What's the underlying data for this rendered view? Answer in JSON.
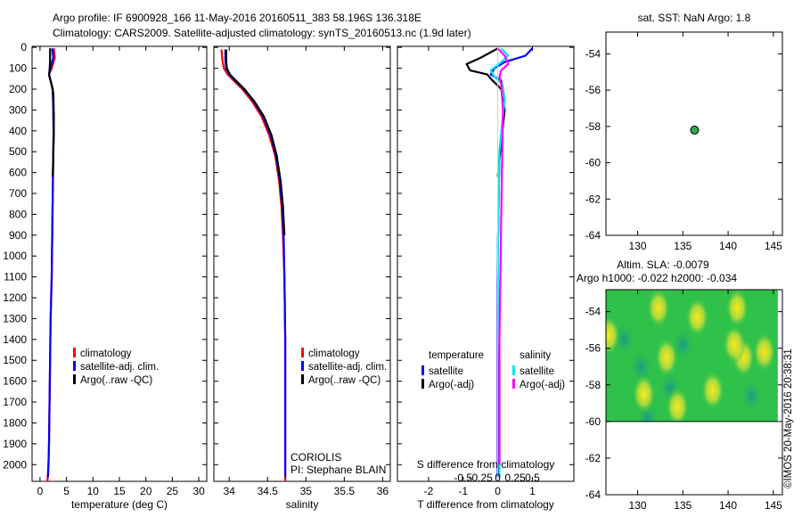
{
  "header": {
    "line1": "Argo profile: IF 6900928_166 11-May-2016 20160511_383 58.196S 136.318E",
    "line2": "Climatology: CARS2009. Satellite-adjusted climatology: synTS_20160513.nc (1.9d later)"
  },
  "colors": {
    "climatology": "#ff0000",
    "satellite": "#0000ff",
    "argo": "#000000",
    "sat_diff": "#00e5e5",
    "argo_diff": "#ff00ff",
    "marker": "#2fa84f"
  },
  "chart_data": [
    {
      "type": "line",
      "name": "temperature",
      "xlabel": "temperature (deg C)",
      "xlim": [
        -1.5,
        31.5
      ],
      "ylim": [
        2080,
        -5
      ],
      "xticks": [
        0,
        5,
        10,
        15,
        20,
        25,
        30
      ],
      "xtick_labels": [
        "0",
        "5",
        "10",
        "15",
        "20",
        "25",
        "30"
      ],
      "yticks": [
        0,
        100,
        200,
        300,
        400,
        500,
        600,
        700,
        800,
        900,
        1000,
        1100,
        1200,
        1300,
        1400,
        1500,
        1600,
        1700,
        1800,
        1900,
        2000
      ],
      "ytick_labels": [
        "0",
        "100",
        "200",
        "300",
        "400",
        "500",
        "600",
        "700",
        "800",
        "900",
        "1000",
        "1100",
        "1200",
        "1300",
        "1400",
        "1500",
        "1600",
        "1700",
        "1800",
        "1900",
        "2000"
      ],
      "legend": [
        "climatology",
        "satellite-adj. clim.",
        "Argo(..raw -QC)"
      ],
      "series": [
        {
          "name": "climatology",
          "color": "#ff0000",
          "x": [
            2.6,
            2.8,
            2.2,
            1.7,
            2.0,
            2.4,
            2.5,
            2.55,
            2.5,
            2.4,
            2.3,
            2.2,
            2.0,
            1.9,
            1.8,
            1.7,
            1.6,
            1.4
          ],
          "y": [
            5,
            50,
            100,
            130,
            160,
            200,
            300,
            400,
            500,
            700,
            900,
            1100,
            1300,
            1500,
            1700,
            1900,
            2000,
            2080
          ]
        },
        {
          "name": "satellite-adj. clim.",
          "color": "#0000ff",
          "x": [
            2.3,
            2.5,
            2.0,
            1.7,
            2.0,
            2.4,
            2.5,
            2.55,
            2.5,
            2.4,
            2.3,
            2.2,
            2.0,
            1.9,
            1.8,
            1.7,
            1.6,
            1.5
          ],
          "y": [
            5,
            50,
            100,
            130,
            160,
            200,
            300,
            400,
            500,
            700,
            900,
            1100,
            1300,
            1500,
            1700,
            1900,
            2000,
            2060
          ]
        },
        {
          "name": "Argo(..raw -QC)",
          "color": "#000000",
          "x": [
            1.9,
            1.9,
            1.8,
            1.7,
            2.1,
            2.5,
            2.6,
            2.6,
            2.5,
            2.4
          ],
          "y": [
            5,
            70,
            110,
            130,
            170,
            220,
            320,
            420,
            520,
            620
          ]
        }
      ]
    },
    {
      "type": "line",
      "name": "salinity",
      "xlabel": "salinity",
      "xlim": [
        33.8,
        36.1
      ],
      "ylim": [
        2080,
        -5
      ],
      "xticks": [
        34,
        34.5,
        35,
        35.5,
        36
      ],
      "xtick_labels": [
        "34",
        "34.5",
        "35",
        "35.5",
        "36"
      ],
      "legend": [
        "climatology",
        "satellite-adj. clim.",
        "Argo(..raw -QC)"
      ],
      "annotation": [
        "CORIOLIS",
        "PI: Stephane BLAIN"
      ],
      "series": [
        {
          "name": "climatology",
          "color": "#ff0000",
          "x": [
            33.9,
            33.91,
            33.93,
            33.98,
            34.06,
            34.17,
            34.3,
            34.42,
            34.52,
            34.6,
            34.65,
            34.68,
            34.7,
            34.72,
            34.73,
            34.73,
            34.73
          ],
          "y": [
            10,
            60,
            100,
            130,
            160,
            200,
            260,
            330,
            420,
            520,
            640,
            760,
            900,
            1100,
            1400,
            1800,
            2080
          ]
        },
        {
          "name": "satellite-adj. clim.",
          "color": "#0000ff",
          "x": [
            33.95,
            33.95,
            33.96,
            34.0,
            34.08,
            34.19,
            34.32,
            34.44,
            34.54,
            34.61,
            34.66,
            34.69,
            34.71,
            34.72,
            34.73,
            34.73,
            34.73
          ],
          "y": [
            10,
            60,
            100,
            130,
            160,
            200,
            260,
            330,
            420,
            520,
            640,
            760,
            900,
            1100,
            1400,
            1800,
            2060
          ]
        },
        {
          "name": "Argo(..raw -QC)",
          "color": "#000000",
          "x": [
            33.96,
            33.96,
            33.97,
            34.01,
            34.09,
            34.2,
            34.33,
            34.45,
            34.55,
            34.62,
            34.67,
            34.7,
            34.72
          ],
          "y": [
            10,
            60,
            100,
            130,
            160,
            200,
            260,
            330,
            420,
            520,
            640,
            760,
            900
          ]
        }
      ]
    },
    {
      "type": "line",
      "name": "difference from climatology",
      "xlabel": "T difference from climatology",
      "xlabel_top": "S difference from climatology",
      "xlim": [
        -2.9,
        2.2
      ],
      "ylim": [
        2080,
        -5
      ],
      "xticks": [
        -2,
        -1,
        0,
        1
      ],
      "xtick_labels": [
        "-2",
        "-1",
        "0",
        "1"
      ],
      "top_ticks": [
        -0.5,
        -0.25,
        0,
        0.25,
        0.5
      ],
      "top_tick_labels": [
        "-0.5",
        "-0.25",
        "0",
        "0.25",
        "0.5"
      ],
      "legend_titles": [
        "temperature",
        "salinity"
      ],
      "legend": [
        "satellite",
        "Argo(-adj)",
        "satellite",
        "Argo(-adj)"
      ],
      "series": [
        {
          "name": "temperature satellite",
          "color": "#0000ff",
          "x": [
            1.0,
            0.8,
            0.2,
            -0.1,
            -0.2,
            0.1,
            0.2,
            0.05,
            0.0,
            0.0,
            0.0
          ],
          "y": [
            5,
            40,
            70,
            100,
            130,
            160,
            250,
            500,
            1000,
            1500,
            2060
          ]
        },
        {
          "name": "temperature Argo(-adj)",
          "color": "#000000",
          "x": [
            0.0,
            -0.5,
            -0.9,
            -0.8,
            -0.3,
            -0.2,
            0.1,
            0.2,
            0.1,
            0.0
          ],
          "y": [
            5,
            50,
            80,
            110,
            130,
            150,
            200,
            300,
            450,
            620
          ]
        },
        {
          "name": "salinity satellite",
          "color": "#00e5e5",
          "x": [
            0.1,
            0.3,
            0.1,
            -0.2,
            -0.1,
            0.1,
            0.2,
            0.05,
            0.0,
            0.05,
            0.05
          ],
          "y": [
            5,
            40,
            70,
            110,
            140,
            170,
            250,
            500,
            1000,
            1500,
            2060
          ]
        },
        {
          "name": "salinity Argo(-adj)",
          "color": "#ff00ff",
          "x": [
            0.0,
            0.2,
            0.3,
            0.1,
            0.05,
            0.1,
            0.15,
            0.1,
            0.05,
            0.05
          ],
          "y": [
            5,
            40,
            80,
            110,
            140,
            180,
            300,
            800,
            1400,
            2000
          ]
        }
      ]
    },
    {
      "type": "scatter",
      "name": "location",
      "title": "sat. SST: NaN Argo: 1.8",
      "xlim": [
        126.5,
        146
      ],
      "ylim": [
        -64,
        -52.8
      ],
      "xticks": [
        130,
        135,
        140,
        145
      ],
      "xtick_labels": [
        "130",
        "135",
        "140",
        "145"
      ],
      "yticks": [
        -54,
        -56,
        -58,
        -60,
        -62,
        -64
      ],
      "ytick_labels": [
        "-54",
        "-56",
        "-58",
        "-60",
        "-62",
        "-64"
      ],
      "points": [
        {
          "x": 136.3,
          "y": -58.2
        }
      ]
    },
    {
      "type": "heatmap",
      "name": "altimetry",
      "title1": "Altim. SLA: -0.0079",
      "title2": "Argo h1000: -0.022 h2000: -0.034",
      "xlim": [
        126.5,
        146
      ],
      "ylim": [
        -64,
        -52.8
      ],
      "field_ylim": [
        -60,
        -52.8
      ],
      "field_xlim": [
        126.5,
        145.5
      ],
      "xticks": [
        130,
        135,
        140,
        145
      ],
      "xtick_labels": [
        "130",
        "135",
        "140",
        "145"
      ],
      "yticks": [
        -54,
        -56,
        -58,
        -60,
        -62,
        -64
      ],
      "ytick_labels": [
        "-54",
        "-56",
        "-58",
        "-60",
        "-62",
        "-64"
      ],
      "yellow_spots": [
        [
          126.8,
          -55.3
        ],
        [
          132.3,
          -53.8
        ],
        [
          136.6,
          -54.3
        ],
        [
          133.2,
          -56.5
        ],
        [
          141.7,
          -56.5
        ],
        [
          140.7,
          -55.8
        ],
        [
          138.3,
          -58.3
        ],
        [
          130.7,
          -58.5
        ],
        [
          134.4,
          -59.2
        ],
        [
          144.0,
          -56.2
        ],
        [
          141.0,
          -53.8
        ]
      ],
      "teal_spots": [
        [
          128.5,
          -55.5
        ],
        [
          130.4,
          -57.0
        ],
        [
          135.0,
          -55.8
        ],
        [
          133.6,
          -58.2
        ],
        [
          142.6,
          -58.6
        ],
        [
          131.1,
          -59.8
        ]
      ]
    }
  ],
  "credit": "©IMOS 20-May-2016 20:38:31"
}
